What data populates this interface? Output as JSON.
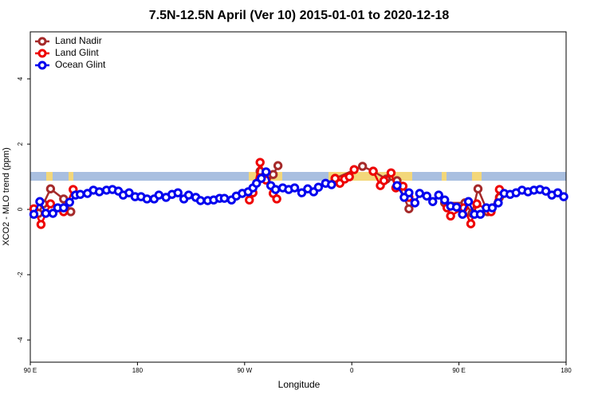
{
  "chart_data": {
    "type": "line",
    "title": "7.5N-12.5N April (Ver 10)   2015-01-01 to 2020-12-18",
    "xlabel": "Longitude",
    "ylabel": "XCO2 - MLO trend (ppm)",
    "xlim": [
      90,
      540
    ],
    "ylim": [
      -4.68,
      5.44
    ],
    "xticks": [
      {
        "value": 90,
        "label": "90 E"
      },
      {
        "value": 180,
        "label": "180"
      },
      {
        "value": 270,
        "label": "90 W"
      },
      {
        "value": 360,
        "label": "0"
      },
      {
        "value": 450,
        "label": "90 E"
      },
      {
        "value": 540,
        "label": "180"
      }
    ],
    "yticks": [
      -4,
      -2,
      0,
      2,
      4
    ],
    "legend": "top-left",
    "series": [
      {
        "name": "Land Nadir",
        "color": "#a52a2a",
        "x": [
          97,
          101,
          107,
          118,
          124,
          null,
          283,
          289,
          294,
          298,
          null,
          346,
          369,
          378,
          389,
          398,
          408,
          null,
          438,
          455,
          461,
          466,
          474,
          484
        ],
        "values": [
          -0.12,
          0.17,
          0.63,
          0.32,
          -0.07,
          null,
          1.17,
          1.0,
          1.07,
          1.34,
          null,
          0.95,
          1.32,
          1.17,
          0.93,
          0.88,
          0.02,
          null,
          0.2,
          0.2,
          -0.12,
          0.63,
          -0.07,
          0.37
        ]
      },
      {
        "name": "Land Glint",
        "color": "#ee0000",
        "x": [
          93,
          99,
          107,
          118,
          126,
          null,
          274,
          277,
          283,
          288,
          294,
          297,
          null,
          346,
          350,
          354,
          358,
          362,
          null,
          378,
          384,
          387,
          393,
          397,
          403,
          408,
          null,
          440,
          443,
          454,
          460,
          465,
          477,
          484
        ],
        "values": [
          0.02,
          -0.46,
          0.17,
          -0.07,
          0.61,
          null,
          0.29,
          0.51,
          1.44,
          0.9,
          0.49,
          0.32,
          null,
          0.95,
          0.8,
          0.93,
          1.0,
          1.22,
          null,
          1.17,
          0.73,
          0.88,
          1.12,
          0.66,
          0.71,
          0.37,
          null,
          0.05,
          -0.2,
          0.05,
          -0.44,
          0.17,
          -0.07,
          0.61
        ]
      },
      {
        "name": "Ocean Glint",
        "color": "#0000ee",
        "x": [
          93,
          98,
          103,
          109,
          113,
          118,
          123,
          128,
          132,
          138,
          143,
          148,
          154,
          159,
          164,
          168,
          173,
          178,
          183,
          188,
          194,
          198,
          204,
          209,
          214,
          219,
          223,
          229,
          233,
          239,
          244,
          249,
          253,
          259,
          263,
          268,
          273,
          277,
          280,
          284,
          288,
          292,
          296,
          302,
          307,
          312,
          318,
          323,
          328,
          332,
          338,
          343,
          null,
          398,
          404,
          408,
          413,
          417,
          423,
          428,
          433,
          438,
          443,
          448,
          453,
          458,
          463,
          468,
          473,
          478,
          483,
          488,
          493,
          498,
          503,
          508,
          513,
          518,
          523,
          528,
          533,
          538
        ],
        "values": [
          -0.15,
          0.24,
          -0.12,
          -0.12,
          0.05,
          0.05,
          0.22,
          0.44,
          0.46,
          0.49,
          0.59,
          0.54,
          0.59,
          0.61,
          0.56,
          0.44,
          0.51,
          0.39,
          0.39,
          0.32,
          0.32,
          0.44,
          0.37,
          0.46,
          0.51,
          0.32,
          0.44,
          0.37,
          0.27,
          0.27,
          0.29,
          0.34,
          0.34,
          0.29,
          0.41,
          0.49,
          0.54,
          0.66,
          0.8,
          0.95,
          1.15,
          0.73,
          0.61,
          0.66,
          0.61,
          0.66,
          0.51,
          0.63,
          0.54,
          0.68,
          0.8,
          0.76,
          null,
          0.73,
          0.37,
          0.51,
          0.2,
          0.49,
          0.41,
          0.24,
          0.44,
          0.29,
          0.1,
          0.07,
          -0.15,
          0.24,
          -0.15,
          -0.15,
          0.05,
          0.05,
          0.2,
          0.49,
          0.46,
          0.51,
          0.59,
          0.54,
          0.59,
          0.61,
          0.56,
          0.44,
          0.51,
          0.39
        ]
      }
    ]
  }
}
